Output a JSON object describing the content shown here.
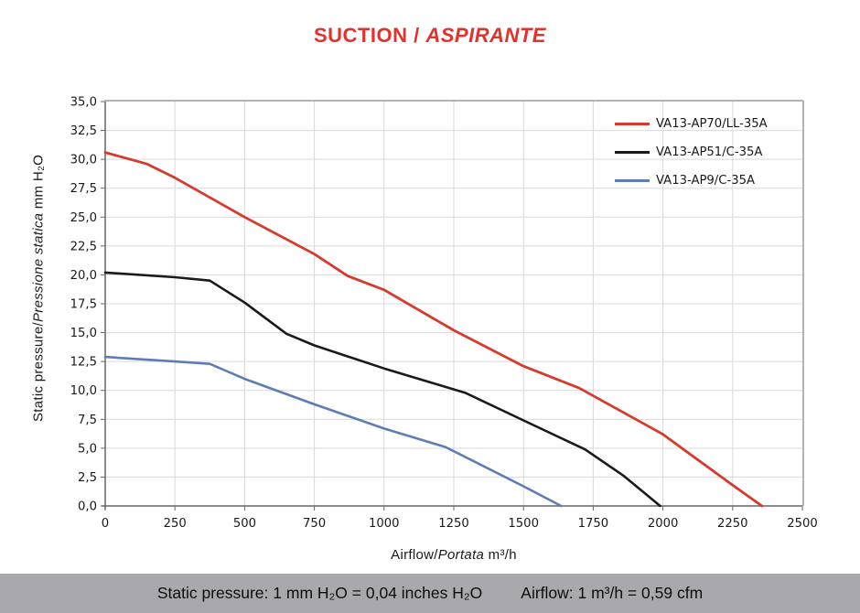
{
  "title": {
    "part1": "SUCTION /",
    "part2": "ASPIRANTE",
    "color": "#e5312b"
  },
  "axes": {
    "y_title": {
      "normal": "Static pressure/",
      "italic": "Pressione statica",
      "unit": "  mm  H₂O"
    },
    "x_title": {
      "normal": "Airflow/",
      "italic": "Portata",
      "unit": "  m³/h"
    }
  },
  "footer": {
    "left": "Static pressure: 1 mm H₂O = 0,04 inches H₂O",
    "right": "Airflow: 1 m³/h = 0,59 cfm",
    "background": "#a9a9ad"
  },
  "chart_data": {
    "type": "line",
    "title": "SUCTION / ASPIRANTE",
    "xlabel": "Airflow/Portata m³/h",
    "ylabel": "Static pressure/Pressione statica mm H₂O",
    "xlim": [
      0,
      2500
    ],
    "ylim": [
      0,
      35
    ],
    "grid": true,
    "legend_position": "top-right",
    "x_ticks": [
      0,
      250,
      500,
      750,
      1000,
      1250,
      1500,
      1750,
      2000,
      2250,
      2500
    ],
    "x_tick_labels": [
      "0",
      "250",
      "500",
      "750",
      "1000",
      "1250",
      "1500",
      "1750",
      "2000",
      "2250",
      "2500"
    ],
    "y_ticks": [
      0,
      2.5,
      5,
      7.5,
      10,
      12.5,
      15,
      17.5,
      20,
      22.5,
      25,
      27.5,
      30,
      32.5,
      35
    ],
    "y_tick_labels": [
      "0,0",
      "2,5",
      "5,0",
      "7,5",
      "10,0",
      "12,5",
      "15,0",
      "17,5",
      "20,0",
      "22,5",
      "25,0",
      "27,5",
      "30,0",
      "32,5",
      "35,0"
    ],
    "colors": {
      "grid": "#d9d9d9",
      "axis": "#666666",
      "border": "#b3b3b3"
    },
    "series": [
      {
        "name": "VA13-AP70/LL-35A",
        "color": "#d63a2c",
        "width": 2.8,
        "points": [
          [
            0,
            30.6
          ],
          [
            150,
            29.6
          ],
          [
            250,
            28.4
          ],
          [
            500,
            25.0
          ],
          [
            750,
            21.8
          ],
          [
            870,
            19.9
          ],
          [
            1000,
            18.7
          ],
          [
            1250,
            15.2
          ],
          [
            1500,
            12.1
          ],
          [
            1700,
            10.2
          ],
          [
            2000,
            6.2
          ],
          [
            2250,
            1.8
          ],
          [
            2355,
            0
          ]
        ]
      },
      {
        "name": "VA13-AP51/C-35A",
        "color": "#1a1a1a",
        "width": 2.6,
        "points": [
          [
            0,
            20.2
          ],
          [
            250,
            19.8
          ],
          [
            375,
            19.5
          ],
          [
            500,
            17.6
          ],
          [
            650,
            14.9
          ],
          [
            750,
            13.9
          ],
          [
            1000,
            11.9
          ],
          [
            1290,
            9.8
          ],
          [
            1500,
            7.4
          ],
          [
            1720,
            4.9
          ],
          [
            1860,
            2.6
          ],
          [
            1990,
            0
          ]
        ]
      },
      {
        "name": "VA13-AP9/C-35A",
        "color": "#5f7db4",
        "width": 2.6,
        "points": [
          [
            0,
            12.9
          ],
          [
            250,
            12.5
          ],
          [
            375,
            12.3
          ],
          [
            500,
            11.0
          ],
          [
            750,
            8.8
          ],
          [
            1000,
            6.7
          ],
          [
            1220,
            5.1
          ],
          [
            1500,
            1.7
          ],
          [
            1635,
            0
          ]
        ]
      }
    ]
  }
}
